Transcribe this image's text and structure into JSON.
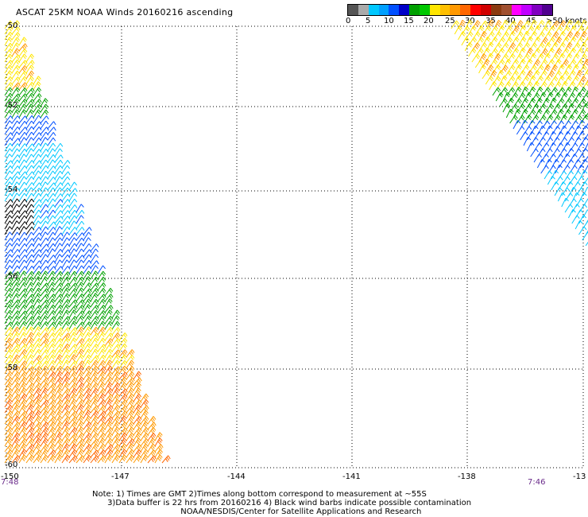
{
  "title": "ASCAT 25KM NOAA Winds 20160216 ascending",
  "legend": {
    "colors": [
      "#555555",
      "#aaaaaa",
      "#00c8ff",
      "#00a0ff",
      "#0050ff",
      "#0000c8",
      "#00a000",
      "#00c800",
      "#ffe600",
      "#ffc000",
      "#ff9900",
      "#ff6600",
      "#ff0000",
      "#d00000",
      "#8b3a10",
      "#a05030",
      "#ff00ff",
      "#c000ff",
      "#8000c0",
      "#500090"
    ],
    "labels": [
      "0",
      "5",
      "10",
      "15",
      "20",
      "25",
      "30",
      "35",
      "40",
      "45",
      ">50 knots"
    ]
  },
  "lat_labels": [
    "-50",
    "-52",
    "-54",
    "-56",
    "-58",
    "-60"
  ],
  "lon_labels": [
    "-150",
    "-147",
    "-144",
    "-141",
    "-138",
    "-13"
  ],
  "times": [
    "7:48",
    "7:46"
  ],
  "notes": [
    "Note: 1) Times are GMT 2)Times along bottom correspond to measurement at ~55S",
    "      3)Data buffer is 22 hrs from 20160216 4) Black wind barbs indicate possible contamination",
    "                                   NOAA/NESDIS/Center for Satellite Applications and Research"
  ]
}
